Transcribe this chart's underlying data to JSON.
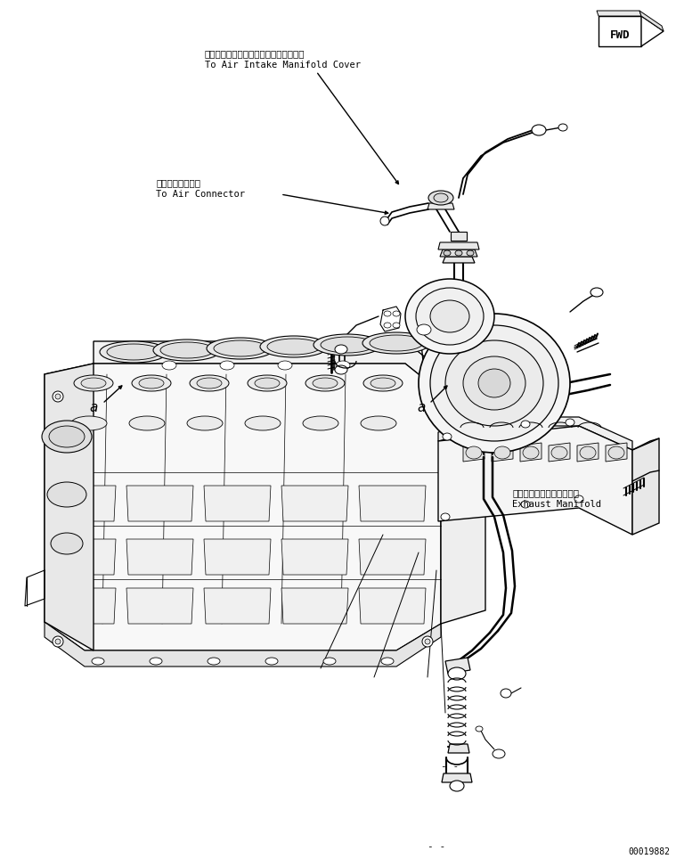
{
  "bg_color": "#ffffff",
  "line_color": "#000000",
  "fig_width": 7.59,
  "fig_height": 9.73,
  "dpi": 100,
  "part_number": "00019882",
  "labels": {
    "air_intake_jp": "エアーインテークマニホールドカバーへ",
    "air_intake_en": "To Air Intake Manifold Cover",
    "air_connector_jp": "エアーコネクタへ",
    "air_connector_en": "To Air Connector",
    "exhaust_jp": "エキゾーストマニホールド",
    "exhaust_en": "Exhaust Manifold",
    "fwd_text": "FWD",
    "label_a1": "a",
    "label_a2": "a",
    "dash1": "- -",
    "dash2": "- -"
  }
}
